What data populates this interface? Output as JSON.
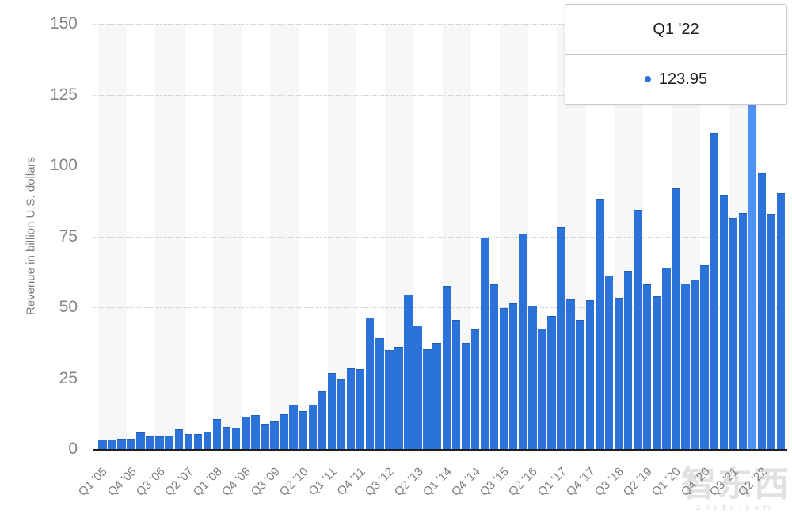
{
  "chart_data": {
    "type": "bar",
    "title": "",
    "xlabel": "",
    "ylabel": "Revenue in billion U.S. dollars",
    "ylim": [
      0,
      150
    ],
    "yticks": [
      0,
      25,
      50,
      75,
      100,
      125,
      150
    ],
    "grid": "horizontal-dotted",
    "legend_position": "none",
    "x_tick_every": 3,
    "highlight_index": 68,
    "categories": [
      "Q1 '05",
      "Q2 '05",
      "Q3 '05",
      "Q4 '05",
      "Q1 '06",
      "Q2 '06",
      "Q3 '06",
      "Q4 '06",
      "Q1 '07",
      "Q2 '07",
      "Q3 '07",
      "Q4 '07",
      "Q1 '08",
      "Q2 '08",
      "Q3 '08",
      "Q4 '08",
      "Q1 '09",
      "Q2 '09",
      "Q3 '09",
      "Q4 '09",
      "Q1 '10",
      "Q2 '10",
      "Q3 '10",
      "Q4 '10",
      "Q1 '11",
      "Q2 '11",
      "Q3 '11",
      "Q4 '11",
      "Q1 '12",
      "Q2 '12",
      "Q3 '12",
      "Q4 '12",
      "Q1 '13",
      "Q2 '13",
      "Q3 '13",
      "Q4 '13",
      "Q1 '14",
      "Q2 '14",
      "Q3 '14",
      "Q4 '14",
      "Q1 '15",
      "Q2 '15",
      "Q3 '15",
      "Q4 '15",
      "Q1 '16",
      "Q2 '16",
      "Q3 '16",
      "Q4 '16",
      "Q1 '17",
      "Q2 '17",
      "Q3 '17",
      "Q4 '17",
      "Q1 '18",
      "Q2 '18",
      "Q3 '18",
      "Q4 '18",
      "Q1 '19",
      "Q2 '19",
      "Q3 '19",
      "Q4 '19",
      "Q1 '20",
      "Q2 '20",
      "Q3 '20",
      "Q4 '20",
      "Q1 '21",
      "Q2 '21",
      "Q3 '21",
      "Q4 '21",
      "Q1 '22",
      "Q2 '22",
      "Q3 '22",
      "Q4 '22"
    ],
    "values": [
      3.49,
      3.24,
      3.52,
      3.68,
      5.75,
      4.36,
      4.37,
      4.84,
      7.12,
      5.26,
      5.41,
      6.22,
      10.6,
      7.7,
      7.5,
      11.52,
      11.88,
      9.08,
      9.73,
      12.21,
      15.68,
      13.5,
      15.7,
      20.34,
      26.74,
      24.67,
      28.57,
      28.27,
      46.33,
      39.19,
      35.02,
      35.97,
      54.51,
      43.6,
      35.32,
      37.47,
      57.59,
      45.65,
      37.43,
      42.12,
      74.6,
      58.01,
      49.61,
      51.5,
      75.87,
      50.56,
      42.36,
      46.85,
      78.35,
      52.9,
      45.41,
      52.58,
      88.29,
      61.14,
      53.27,
      62.9,
      84.31,
      58.02,
      53.81,
      64.04,
      91.82,
      58.31,
      59.69,
      64.7,
      111.44,
      89.58,
      81.43,
      83.36,
      123.95,
      97.28,
      82.96,
      90.15
    ]
  },
  "tooltip": {
    "title": "Q1 '22",
    "value": "123.95"
  },
  "watermark": {
    "text": "智东西",
    "subtext": "zhidx.com"
  },
  "colors": {
    "bar": "#2b73d9",
    "bar_highlight": "#4d93f5",
    "band": "#f7f7f8",
    "gridline": "#cbcbcb",
    "baseline": "#1d1d1d",
    "axis_text": "#7c7c7c",
    "y_axis_text": "#848484",
    "tooltip_border": "#c9c9c9",
    "tooltip_text": "#1a1a1a"
  }
}
